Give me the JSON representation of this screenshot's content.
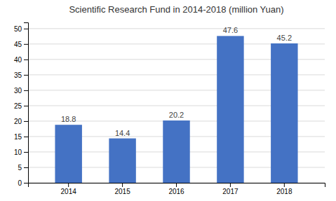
{
  "chart_data": {
    "type": "bar",
    "title": "Scientific Research Fund in 2014-2018 (million Yuan)",
    "categories": [
      "2014",
      "2015",
      "2016",
      "2017",
      "2018"
    ],
    "values": [
      18.8,
      14.4,
      20.2,
      47.6,
      45.2
    ],
    "color": "#4472C4",
    "ylim": [
      0,
      52
    ],
    "yticks": [
      0,
      5,
      10,
      15,
      20,
      25,
      30,
      35,
      40,
      45,
      50
    ],
    "grid": true,
    "data_labels": true
  }
}
